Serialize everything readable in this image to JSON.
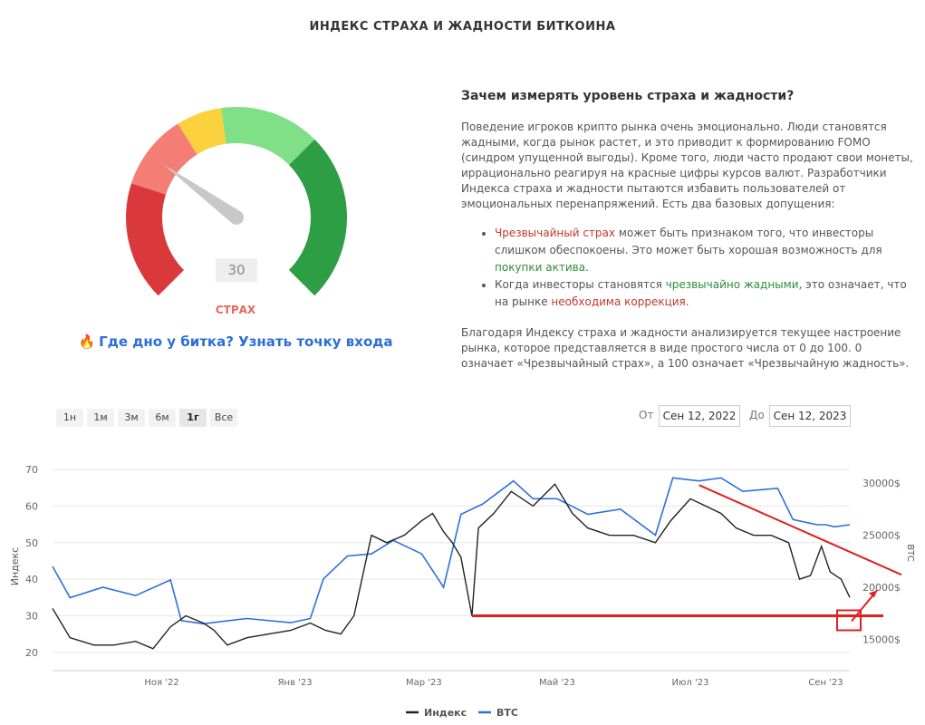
{
  "title": "ИНДЕКС СТРАХА И ЖАДНОСТИ БИТКОИНА",
  "gauge": {
    "value": "30",
    "label": "СТРАХ",
    "value_num": 30,
    "max": 100,
    "colors": [
      "#d9393a",
      "#f47d76",
      "#fcd13e",
      "#7fe088",
      "#2e9e45"
    ]
  },
  "promo": {
    "icon": "🔥",
    "text": "Где дно у битка? Узнать точку входа"
  },
  "info": {
    "heading": "Зачем измерять уровень страха и жадности?",
    "p1": "Поведение игроков крипто рынка очень эмоционально. Люди становятся жадными, когда рынок растет, и это приводит к формированию FOMO (синдром упущенной выгоды). Кроме того, люди часто продают свои монеты, иррационально реагируя на красные цифры курсов валют. Разработчики Индекса страха и жадности пытаются избавить пользователей от эмоциональных перенапряжений. Есть два базовых допущения:",
    "b1_a": "Чрезвычайный страх",
    "b1_b": " может быть признаком того, что инвесторы слишком обеспокоены. Это может быть хорошая возможность для ",
    "b1_c": "покупки актива",
    "b1_d": ".",
    "b2_a": "Когда инвесторы становятся ",
    "b2_b": "чрезвычайно жадными",
    "b2_c": ", это означает, что на рынке ",
    "b2_d": "необходима коррекция",
    "b2_e": ".",
    "p2": "Благодаря Индексу страха и жадности анализируется текущее настроение рынка, которое представляется в виде простого числа от 0 до 100. 0 означает «Чрезвычайный страх», а 100 означает «Чрезвычайную жадность»."
  },
  "range_buttons": [
    "1н",
    "1м",
    "3м",
    "6м",
    "1г",
    "Все"
  ],
  "active_range": "1г",
  "date_from_label": "От",
  "date_from": "Сен 12, 2022",
  "date_to_label": "До",
  "date_to": "Сен 12, 2023",
  "chart_data": {
    "type": "line",
    "x_ticks": [
      "Ноя '22",
      "Янв '23",
      "Мар '23",
      "Май '23",
      "Июл '23",
      "Сен '23"
    ],
    "y_left": {
      "label": "Индекс",
      "ticks": [
        20,
        30,
        40,
        50,
        60,
        70
      ],
      "range": [
        15,
        72
      ]
    },
    "y_right": {
      "label": "BTC",
      "ticks": [
        "15000$",
        "20000$",
        "25000$",
        "30000$"
      ],
      "range": [
        12000,
        32000
      ]
    },
    "series": [
      {
        "name": "Индекс",
        "color": "#222222",
        "points": [
          [
            "2022-09-12",
            32
          ],
          [
            "2022-09-20",
            24
          ],
          [
            "2022-10-01",
            22
          ],
          [
            "2022-10-10",
            22
          ],
          [
            "2022-10-20",
            23
          ],
          [
            "2022-10-28",
            21
          ],
          [
            "2022-11-05",
            27
          ],
          [
            "2022-11-12",
            30
          ],
          [
            "2022-11-20",
            28
          ],
          [
            "2022-11-25",
            26
          ],
          [
            "2022-12-01",
            22
          ],
          [
            "2022-12-10",
            24
          ],
          [
            "2022-12-20",
            25
          ],
          [
            "2022-12-30",
            26
          ],
          [
            "2023-01-08",
            28
          ],
          [
            "2023-01-15",
            26
          ],
          [
            "2023-01-22",
            25
          ],
          [
            "2023-01-28",
            30
          ],
          [
            "2023-02-05",
            52
          ],
          [
            "2023-02-12",
            50
          ],
          [
            "2023-02-20",
            52
          ],
          [
            "2023-02-28",
            56
          ],
          [
            "2023-03-05",
            58
          ],
          [
            "2023-03-10",
            53
          ],
          [
            "2023-03-14",
            50
          ],
          [
            "2023-03-18",
            46
          ],
          [
            "2023-03-23",
            30
          ],
          [
            "2023-03-26",
            54
          ],
          [
            "2023-04-02",
            58
          ],
          [
            "2023-04-10",
            64
          ],
          [
            "2023-04-20",
            60
          ],
          [
            "2023-04-30",
            66
          ],
          [
            "2023-05-08",
            58
          ],
          [
            "2023-05-15",
            54
          ],
          [
            "2023-05-25",
            52
          ],
          [
            "2023-06-05",
            52
          ],
          [
            "2023-06-15",
            50
          ],
          [
            "2023-06-22",
            56
          ],
          [
            "2023-07-01",
            62
          ],
          [
            "2023-07-08",
            60
          ],
          [
            "2023-07-15",
            58
          ],
          [
            "2023-07-22",
            54
          ],
          [
            "2023-07-30",
            52
          ],
          [
            "2023-08-07",
            52
          ],
          [
            "2023-08-15",
            50
          ],
          [
            "2023-08-20",
            40
          ],
          [
            "2023-08-25",
            41
          ],
          [
            "2023-08-30",
            49
          ],
          [
            "2023-09-03",
            42
          ],
          [
            "2023-09-08",
            40
          ],
          [
            "2023-09-12",
            35
          ]
        ]
      },
      {
        "name": "BTC",
        "color": "#2f6fdc",
        "points": [
          [
            "2022-09-12",
            22000
          ],
          [
            "2022-09-20",
            19000
          ],
          [
            "2022-10-05",
            20000
          ],
          [
            "2022-10-20",
            19200
          ],
          [
            "2022-11-05",
            20700
          ],
          [
            "2022-11-10",
            16800
          ],
          [
            "2022-11-20",
            16500
          ],
          [
            "2022-12-10",
            17000
          ],
          [
            "2022-12-30",
            16600
          ],
          [
            "2023-01-08",
            17000
          ],
          [
            "2023-01-14",
            20800
          ],
          [
            "2023-01-25",
            23000
          ],
          [
            "2023-02-05",
            23200
          ],
          [
            "2023-02-15",
            24500
          ],
          [
            "2023-02-28",
            23200
          ],
          [
            "2023-03-10",
            20000
          ],
          [
            "2023-03-18",
            27000
          ],
          [
            "2023-03-28",
            28000
          ],
          [
            "2023-04-11",
            30200
          ],
          [
            "2023-04-20",
            28500
          ],
          [
            "2023-05-01",
            28500
          ],
          [
            "2023-05-15",
            27000
          ],
          [
            "2023-05-30",
            27500
          ],
          [
            "2023-06-15",
            25000
          ],
          [
            "2023-06-23",
            30500
          ],
          [
            "2023-07-05",
            30200
          ],
          [
            "2023-07-15",
            30500
          ],
          [
            "2023-07-25",
            29200
          ],
          [
            "2023-08-10",
            29500
          ],
          [
            "2023-08-17",
            26500
          ],
          [
            "2023-08-28",
            26000
          ],
          [
            "2023-09-01",
            26000
          ],
          [
            "2023-09-05",
            25800
          ],
          [
            "2023-09-12",
            26000
          ]
        ]
      }
    ],
    "annotations": {
      "support_line_color": "#e02020",
      "trend_line_color": "#e02020"
    },
    "legend": {
      "position": "bottom",
      "items": [
        "Индекс",
        "BTC"
      ]
    },
    "grid": true
  }
}
